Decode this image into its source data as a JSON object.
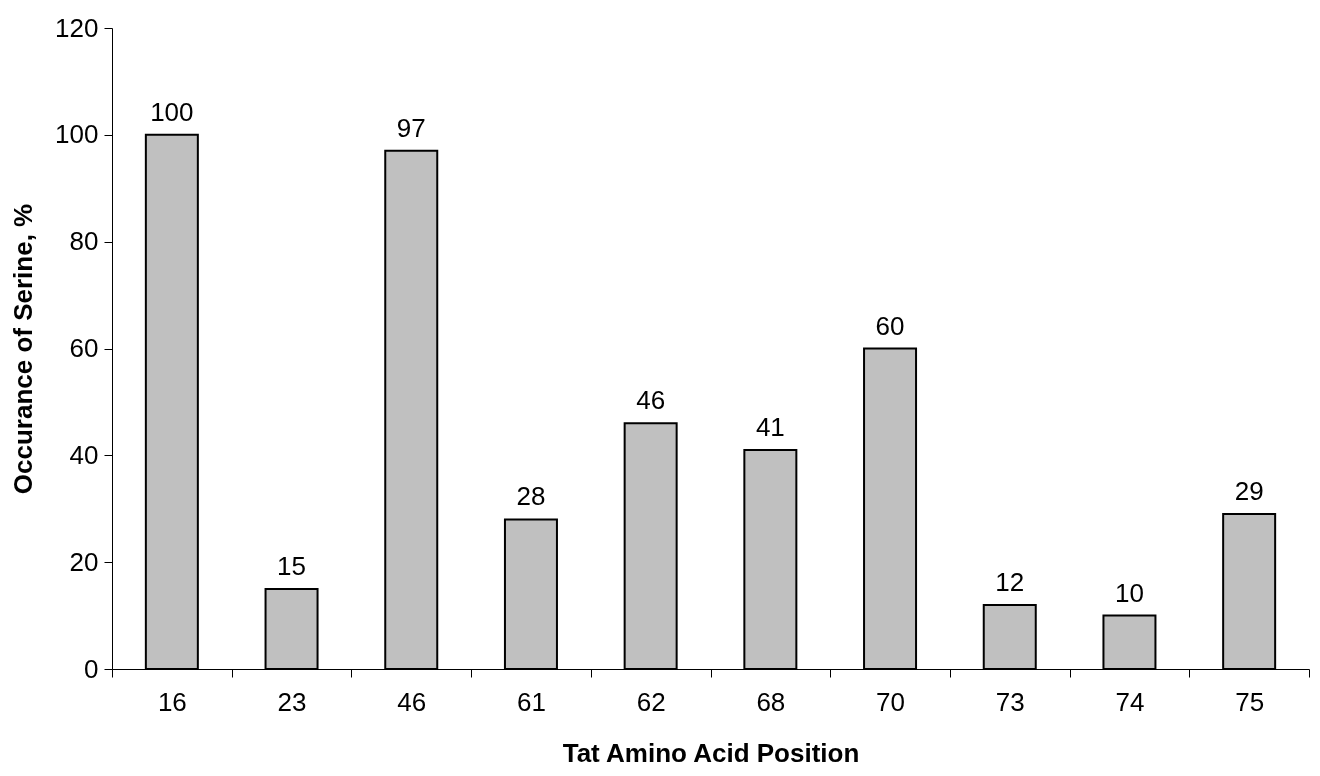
{
  "chart_data": {
    "type": "bar",
    "xlabel": "Tat Amino Acid Position",
    "ylabel": "Occurance of Serine, %",
    "categories": [
      "16",
      "23",
      "46",
      "61",
      "62",
      "68",
      "70",
      "73",
      "74",
      "75"
    ],
    "values": [
      100,
      15,
      97,
      28,
      46,
      41,
      60,
      12,
      10,
      29
    ],
    "color": "#c0c0c0",
    "ylim": [
      0,
      120
    ],
    "yticks": [
      0,
      20,
      40,
      60,
      80,
      100,
      120
    ],
    "data_labels": true,
    "grid": false
  }
}
